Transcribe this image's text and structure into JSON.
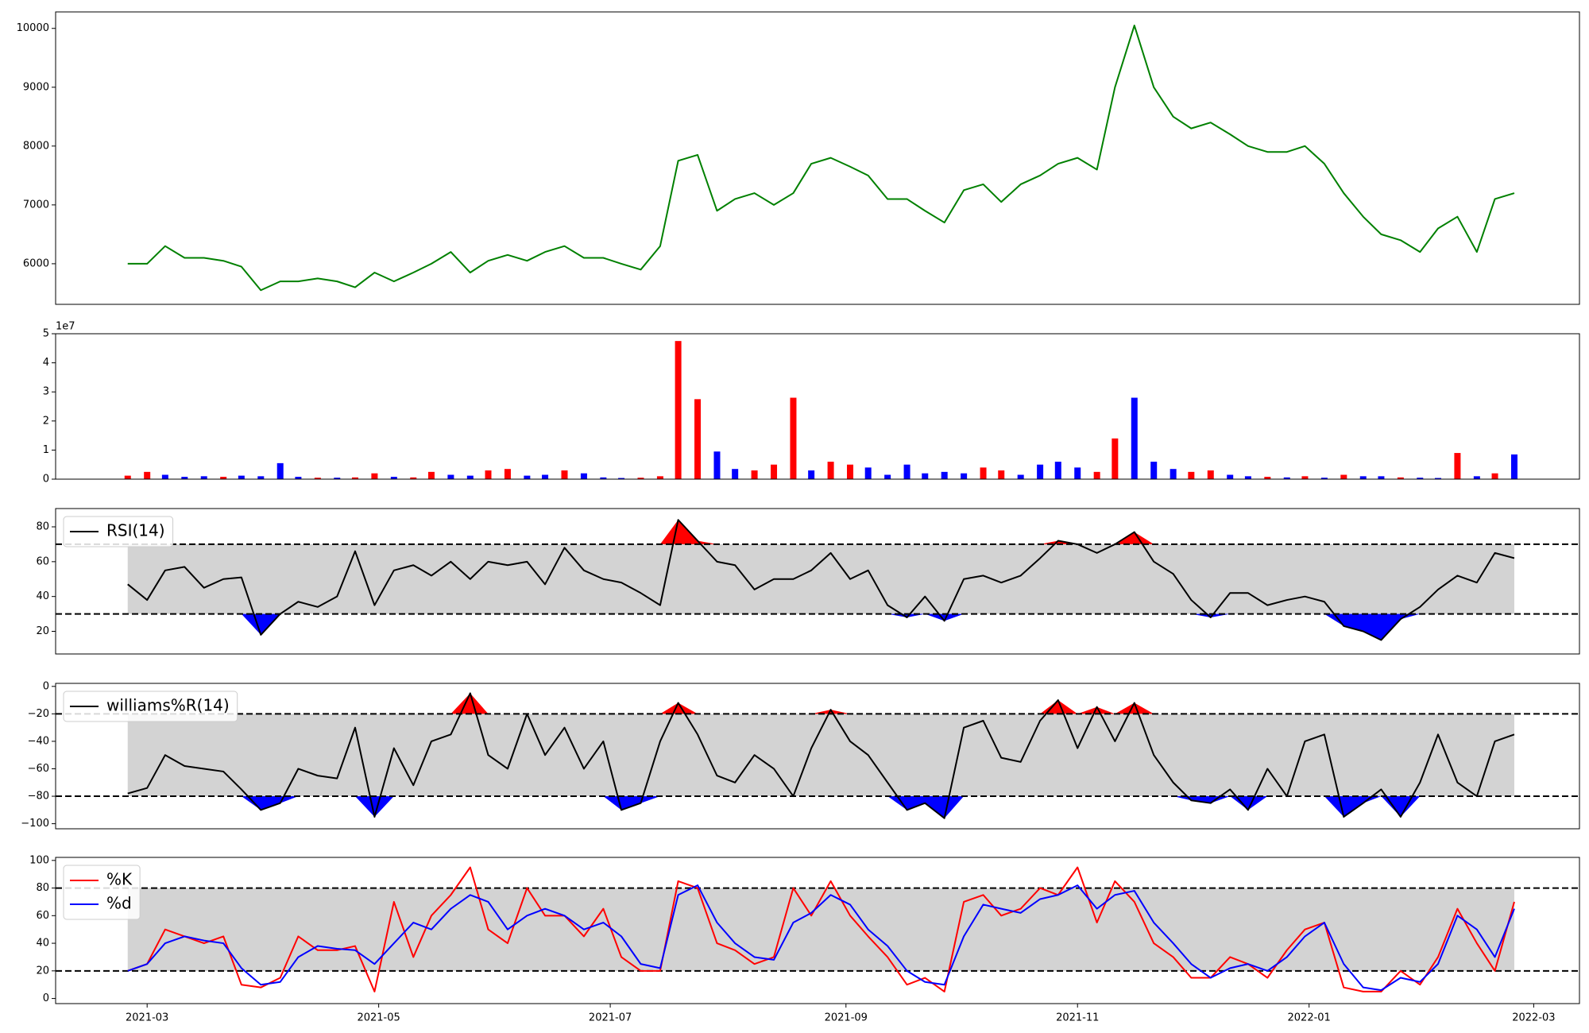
{
  "chart_data": [
    {
      "type": "line",
      "x": [
        2021.148,
        2021.162,
        2021.175,
        2021.189,
        2021.203,
        2021.217,
        2021.23,
        2021.244,
        2021.258,
        2021.271,
        2021.285,
        2021.299,
        2021.312,
        2021.326,
        2021.34,
        2021.354,
        2021.367,
        2021.381,
        2021.395,
        2021.408,
        2021.422,
        2021.436,
        2021.449,
        2021.463,
        2021.477,
        2021.491,
        2021.504,
        2021.518,
        2021.532,
        2021.545,
        2021.559,
        2021.573,
        2021.586,
        2021.6,
        2021.614,
        2021.628,
        2021.641,
        2021.655,
        2021.669,
        2021.682,
        2021.696,
        2021.71,
        2021.723,
        2021.737,
        2021.751,
        2021.765,
        2021.778,
        2021.792,
        2021.806,
        2021.819,
        2021.833,
        2021.847,
        2021.86,
        2021.874,
        2021.888,
        2021.902,
        2021.915,
        2021.929,
        2021.943,
        2021.956,
        2021.97,
        2021.984,
        2021.997,
        2022.011,
        2022.025,
        2022.039,
        2022.052,
        2022.066,
        2022.08,
        2022.093,
        2022.107,
        2022.121,
        2022.134,
        2022.148
      ],
      "series": [
        {
          "color": "green",
          "values": [
            6000,
            6000,
            6300,
            6100,
            6100,
            6050,
            5950,
            5550,
            5700,
            5700,
            5750,
            5700,
            5600,
            5850,
            5700,
            5850,
            6000,
            6200,
            5850,
            6050,
            6150,
            6050,
            6200,
            6300,
            6100,
            6100,
            6000,
            5900,
            6300,
            7750,
            7850,
            6900,
            7100,
            7200,
            7000,
            7200,
            7700,
            7800,
            7650,
            7500,
            7100,
            7100,
            6900,
            6700,
            7250,
            7350,
            7050,
            7350,
            7500,
            7700,
            7800,
            7600,
            9000,
            10050,
            9000,
            8500,
            8300,
            8400,
            8200,
            8000,
            7900,
            7900,
            8000,
            7700,
            7200,
            6800,
            6500,
            6400,
            6200,
            6600,
            6800,
            6200,
            7100,
            7200
          ]
        }
      ],
      "xlim": [
        2021.096,
        2022.195
      ],
      "ylim": [
        5310,
        10280
      ],
      "yticks": [
        6000,
        7000,
        8000,
        9000,
        10000
      ]
    },
    {
      "type": "bar",
      "x": [
        2021.148,
        2021.162,
        2021.175,
        2021.189,
        2021.203,
        2021.217,
        2021.23,
        2021.244,
        2021.258,
        2021.271,
        2021.285,
        2021.299,
        2021.312,
        2021.326,
        2021.34,
        2021.354,
        2021.367,
        2021.381,
        2021.395,
        2021.408,
        2021.422,
        2021.436,
        2021.449,
        2021.463,
        2021.477,
        2021.491,
        2021.504,
        2021.518,
        2021.532,
        2021.545,
        2021.559,
        2021.573,
        2021.586,
        2021.6,
        2021.614,
        2021.628,
        2021.641,
        2021.655,
        2021.669,
        2021.682,
        2021.696,
        2021.71,
        2021.723,
        2021.737,
        2021.751,
        2021.765,
        2021.778,
        2021.792,
        2021.806,
        2021.819,
        2021.833,
        2021.847,
        2021.86,
        2021.874,
        2021.888,
        2021.902,
        2021.915,
        2021.929,
        2021.943,
        2021.956,
        2021.97,
        2021.984,
        2021.997,
        2022.011,
        2022.025,
        2022.039,
        2022.052,
        2022.066,
        2022.08,
        2022.093,
        2022.107,
        2022.121,
        2022.134,
        2022.148
      ],
      "values": [
        1200000,
        2500000,
        1500000,
        800000,
        1000000,
        800000,
        1200000,
        1000000,
        5500000,
        800000,
        500000,
        500000,
        600000,
        2000000,
        800000,
        600000,
        2500000,
        1500000,
        1200000,
        3000000,
        3500000,
        1200000,
        1500000,
        3000000,
        2000000,
        600000,
        400000,
        500000,
        1000000,
        47500000,
        27500000,
        9500000,
        3500000,
        3000000,
        5000000,
        28000000,
        3000000,
        6000000,
        5000000,
        4000000,
        1500000,
        5000000,
        2000000,
        2500000,
        2000000,
        4000000,
        3000000,
        1500000,
        5000000,
        6000000,
        4000000,
        2500000,
        14000000,
        28000000,
        6000000,
        3500000,
        2500000,
        3000000,
        1500000,
        1000000,
        800000,
        600000,
        1000000,
        500000,
        1500000,
        1000000,
        1000000,
        600000,
        500000,
        400000,
        9000000,
        1000000,
        2000000,
        8500000
      ],
      "bar_colors": [
        "red",
        "red",
        "blue",
        "blue",
        "blue",
        "red",
        "blue",
        "blue",
        "blue",
        "blue",
        "red",
        "blue",
        "red",
        "red",
        "blue",
        "red",
        "red",
        "blue",
        "blue",
        "red",
        "red",
        "blue",
        "blue",
        "red",
        "blue",
        "blue",
        "blue",
        "red",
        "red",
        "red",
        "red",
        "blue",
        "blue",
        "red",
        "red",
        "red",
        "blue",
        "red",
        "red",
        "blue",
        "blue",
        "blue",
        "blue",
        "blue",
        "blue",
        "red",
        "red",
        "blue",
        "blue",
        "blue",
        "blue",
        "red",
        "red",
        "blue",
        "blue",
        "blue",
        "red",
        "red",
        "blue",
        "blue",
        "red",
        "blue",
        "red",
        "blue",
        "red",
        "blue",
        "blue",
        "red",
        "blue",
        "blue",
        "red",
        "blue",
        "red",
        "blue"
      ],
      "offset_label": "1e7",
      "xlim": [
        2021.096,
        2022.195
      ],
      "ylim": [
        0,
        50000000
      ],
      "yticks": [
        0,
        {
          "value": 10000000,
          "label": "1"
        },
        {
          "value": 20000000,
          "label": "2"
        },
        {
          "value": 30000000,
          "label": "3"
        },
        {
          "value": 40000000,
          "label": "4"
        },
        {
          "value": 50000000,
          "label": "5"
        }
      ]
    },
    {
      "type": "oscillator",
      "x": [
        2021.148,
        2021.162,
        2021.175,
        2021.189,
        2021.203,
        2021.217,
        2021.23,
        2021.244,
        2021.258,
        2021.271,
        2021.285,
        2021.299,
        2021.312,
        2021.326,
        2021.34,
        2021.354,
        2021.367,
        2021.381,
        2021.395,
        2021.408,
        2021.422,
        2021.436,
        2021.449,
        2021.463,
        2021.477,
        2021.491,
        2021.504,
        2021.518,
        2021.532,
        2021.545,
        2021.559,
        2021.573,
        2021.586,
        2021.6,
        2021.614,
        2021.628,
        2021.641,
        2021.655,
        2021.669,
        2021.682,
        2021.696,
        2021.71,
        2021.723,
        2021.737,
        2021.751,
        2021.765,
        2021.778,
        2021.792,
        2021.806,
        2021.819,
        2021.833,
        2021.847,
        2021.86,
        2021.874,
        2021.888,
        2021.902,
        2021.915,
        2021.929,
        2021.943,
        2021.956,
        2021.97,
        2021.984,
        2021.997,
        2022.011,
        2022.025,
        2022.039,
        2022.052,
        2022.066,
        2022.08,
        2022.093,
        2022.107,
        2022.121,
        2022.134,
        2022.148
      ],
      "series": [
        {
          "name": "RSI(14)",
          "color": "black",
          "values": [
            47,
            38,
            55,
            57,
            45,
            50,
            51,
            18,
            30,
            37,
            34,
            40,
            66,
            35,
            55,
            58,
            52,
            60,
            50,
            60,
            58,
            60,
            47,
            68,
            55,
            50,
            48,
            42,
            35,
            84,
            72,
            60,
            58,
            44,
            50,
            50,
            55,
            65,
            50,
            55,
            35,
            28,
            40,
            26,
            50,
            52,
            48,
            52,
            62,
            72,
            70,
            65,
            70,
            77,
            60,
            53,
            38,
            28,
            42,
            42,
            35,
            38,
            40,
            37,
            23,
            20,
            15,
            27,
            34,
            44,
            52,
            48,
            65,
            62
          ]
        }
      ],
      "thresholds": [
        70,
        30
      ],
      "band_color": "lightgray",
      "over_color": "red",
      "under_color": "blue",
      "legend": "upper left",
      "xlim": [
        2021.096,
        2022.195
      ],
      "ylim": [
        7,
        90.5
      ],
      "yticks": [
        20,
        40,
        60,
        80
      ]
    },
    {
      "type": "oscillator",
      "x": [
        2021.148,
        2021.162,
        2021.175,
        2021.189,
        2021.203,
        2021.217,
        2021.23,
        2021.244,
        2021.258,
        2021.271,
        2021.285,
        2021.299,
        2021.312,
        2021.326,
        2021.34,
        2021.354,
        2021.367,
        2021.381,
        2021.395,
        2021.408,
        2021.422,
        2021.436,
        2021.449,
        2021.463,
        2021.477,
        2021.491,
        2021.504,
        2021.518,
        2021.532,
        2021.545,
        2021.559,
        2021.573,
        2021.586,
        2021.6,
        2021.614,
        2021.628,
        2021.641,
        2021.655,
        2021.669,
        2021.682,
        2021.696,
        2021.71,
        2021.723,
        2021.737,
        2021.751,
        2021.765,
        2021.778,
        2021.792,
        2021.806,
        2021.819,
        2021.833,
        2021.847,
        2021.86,
        2021.874,
        2021.888,
        2021.902,
        2021.915,
        2021.929,
        2021.943,
        2021.956,
        2021.97,
        2021.984,
        2021.997,
        2022.011,
        2022.025,
        2022.039,
        2022.052,
        2022.066,
        2022.08,
        2022.093,
        2022.107,
        2022.121,
        2022.134,
        2022.148
      ],
      "series": [
        {
          "name": "williams%R(14)",
          "color": "black",
          "values": [
            -78,
            -74,
            -50,
            -58,
            -60,
            -62,
            -75,
            -90,
            -85,
            -60,
            -65,
            -67,
            -30,
            -95,
            -45,
            -72,
            -40,
            -35,
            -5,
            -50,
            -60,
            -20,
            -50,
            -30,
            -60,
            -40,
            -90,
            -85,
            -40,
            -12,
            -35,
            -65,
            -70,
            -50,
            -60,
            -80,
            -45,
            -17,
            -40,
            -50,
            -70,
            -90,
            -85,
            -96,
            -30,
            -25,
            -52,
            -55,
            -25,
            -10,
            -45,
            -15,
            -40,
            -12,
            -50,
            -70,
            -83,
            -85,
            -75,
            -90,
            -60,
            -80,
            -40,
            -35,
            -95,
            -85,
            -75,
            -95,
            -70,
            -35,
            -70,
            -80,
            -40,
            -35
          ]
        }
      ],
      "thresholds": [
        -20,
        -80
      ],
      "band_color": "lightgray",
      "over_color": "red",
      "under_color": "blue",
      "legend": "upper left",
      "xlim": [
        2021.096,
        2022.195
      ],
      "ylim": [
        -103.7,
        2.2
      ],
      "yticks": [
        {
          "value": -100,
          "label": "−100"
        },
        {
          "value": -80,
          "label": "−80"
        },
        {
          "value": -60,
          "label": "−60"
        },
        {
          "value": -40,
          "label": "−40"
        },
        {
          "value": -20,
          "label": "−20"
        },
        0
      ]
    },
    {
      "type": "oscillator",
      "x": [
        2021.148,
        2021.162,
        2021.175,
        2021.189,
        2021.203,
        2021.217,
        2021.23,
        2021.244,
        2021.258,
        2021.271,
        2021.285,
        2021.299,
        2021.312,
        2021.326,
        2021.34,
        2021.354,
        2021.367,
        2021.381,
        2021.395,
        2021.408,
        2021.422,
        2021.436,
        2021.449,
        2021.463,
        2021.477,
        2021.491,
        2021.504,
        2021.518,
        2021.532,
        2021.545,
        2021.559,
        2021.573,
        2021.586,
        2021.6,
        2021.614,
        2021.628,
        2021.641,
        2021.655,
        2021.669,
        2021.682,
        2021.696,
        2021.71,
        2021.723,
        2021.737,
        2021.751,
        2021.765,
        2021.778,
        2021.792,
        2021.806,
        2021.819,
        2021.833,
        2021.847,
        2021.86,
        2021.874,
        2021.888,
        2021.902,
        2021.915,
        2021.929,
        2021.943,
        2021.956,
        2021.97,
        2021.984,
        2021.997,
        2022.011,
        2022.025,
        2022.039,
        2022.052,
        2022.066,
        2022.08,
        2022.093,
        2022.107,
        2022.121,
        2022.134,
        2022.148
      ],
      "series": [
        {
          "name": "%K",
          "color": "red",
          "values": [
            20,
            25,
            50,
            45,
            40,
            45,
            10,
            8,
            15,
            45,
            35,
            35,
            38,
            5,
            70,
            30,
            60,
            75,
            95,
            50,
            40,
            80,
            60,
            60,
            45,
            65,
            30,
            20,
            20,
            85,
            80,
            40,
            35,
            25,
            30,
            80,
            60,
            85,
            60,
            45,
            30,
            10,
            15,
            5,
            70,
            75,
            60,
            65,
            80,
            75,
            95,
            55,
            85,
            70,
            40,
            30,
            15,
            15,
            30,
            25,
            15,
            35,
            50,
            55,
            8,
            5,
            5,
            20,
            10,
            30,
            65,
            40,
            20,
            70
          ]
        },
        {
          "name": "%d",
          "color": "blue",
          "values": [
            20,
            25,
            40,
            45,
            42,
            40,
            22,
            10,
            12,
            30,
            38,
            36,
            35,
            25,
            40,
            55,
            50,
            65,
            75,
            70,
            50,
            60,
            65,
            60,
            50,
            55,
            45,
            25,
            22,
            75,
            82,
            55,
            40,
            30,
            28,
            55,
            62,
            75,
            68,
            50,
            38,
            20,
            12,
            10,
            45,
            68,
            65,
            62,
            72,
            75,
            82,
            65,
            75,
            78,
            55,
            40,
            25,
            15,
            22,
            25,
            20,
            30,
            45,
            55,
            25,
            8,
            6,
            15,
            12,
            25,
            60,
            50,
            30,
            65
          ]
        }
      ],
      "thresholds": [
        80,
        20
      ],
      "band_color": "lightgray",
      "legend": "upper left",
      "xlim": [
        2021.096,
        2022.195
      ],
      "ylim": [
        -3.7,
        102.2
      ],
      "yticks": [
        0,
        20,
        40,
        60,
        80,
        100
      ],
      "xticks": [
        {
          "value": 2021.162,
          "label": "2021-03"
        },
        {
          "value": 2021.329,
          "label": "2021-05"
        },
        {
          "value": 2021.496,
          "label": "2021-07"
        },
        {
          "value": 2021.666,
          "label": "2021-09"
        },
        {
          "value": 2021.833,
          "label": "2021-11"
        },
        {
          "value": 2022.0,
          "label": "2022-01"
        },
        {
          "value": 2022.162,
          "label": "2022-03"
        }
      ]
    }
  ]
}
